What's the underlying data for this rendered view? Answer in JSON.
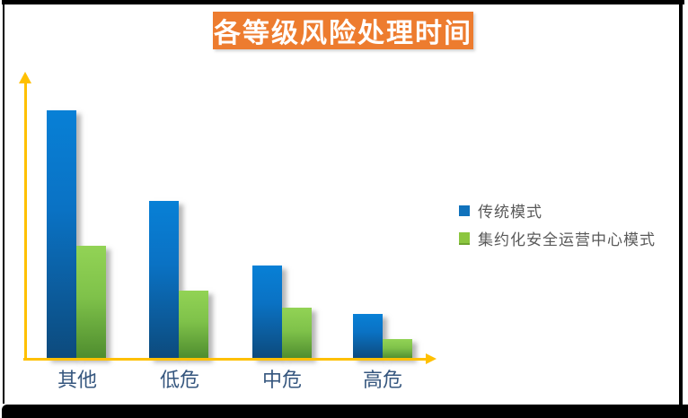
{
  "frame": {
    "border_color": "#000000",
    "background": "#FFFFFF"
  },
  "title": {
    "text": "各等级风险处理时间",
    "bg_color": "#ED7C2F",
    "text_color": "#FFFFFF"
  },
  "axes": {
    "color": "#FFC000"
  },
  "legend": {
    "position": "right",
    "text_color": "#595959",
    "items": [
      {
        "label": "传统模式",
        "color": "#1072BC"
      },
      {
        "label": "集约化安全运营中心模式",
        "color": "#8CC63F"
      }
    ]
  },
  "categories_style": {
    "text_color": "#35567E"
  },
  "chart_data": {
    "type": "bar",
    "title": "各等级风险处理时间",
    "categories": [
      "其他",
      "低危",
      "中危",
      "高危"
    ],
    "series": [
      {
        "name": "传统模式",
        "color": "#0A77CC",
        "values": [
          88,
          56,
          33,
          16
        ]
      },
      {
        "name": "集约化安全运营中心模式",
        "color": "#8CC63F",
        "values": [
          40,
          24,
          18,
          7
        ]
      }
    ],
    "xlabel": "",
    "ylabel": "",
    "ylim": [
      0,
      100
    ],
    "grid": false,
    "legend_position": "right"
  }
}
